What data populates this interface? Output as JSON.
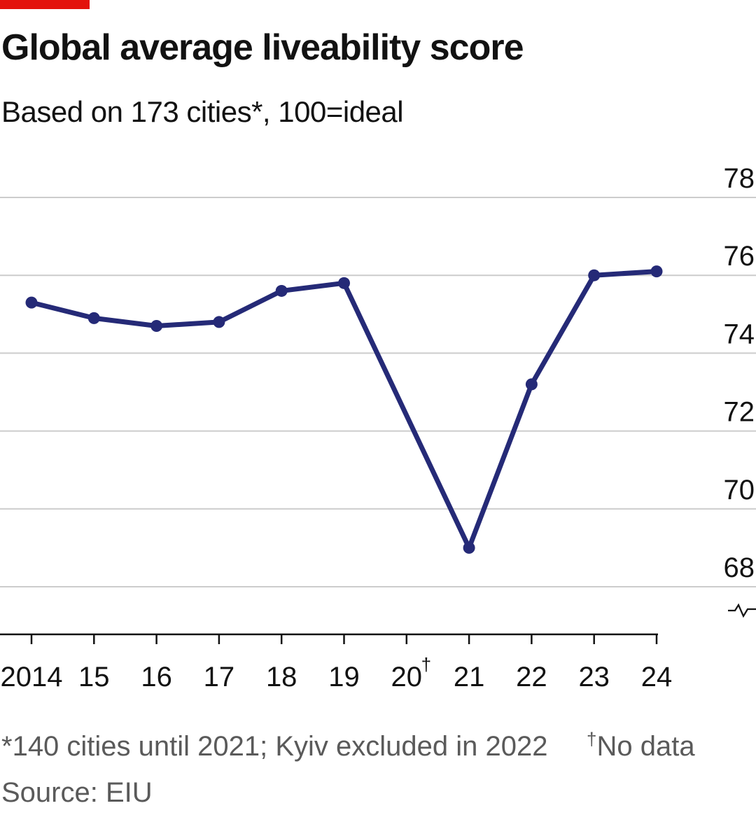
{
  "chart_data": {
    "type": "line",
    "title": "Global average liveability score",
    "subtitle": "Based on 173 cities*, 100=ideal",
    "categories": [
      "2014",
      "15",
      "16",
      "17",
      "18",
      "19",
      "20",
      "21",
      "22",
      "23",
      "24"
    ],
    "category_marks": {
      "20": "†"
    },
    "series": [
      {
        "name": "Global average liveability score",
        "color": "#252a77",
        "values": [
          75.3,
          74.9,
          74.7,
          74.8,
          75.6,
          75.8,
          null,
          69.0,
          73.2,
          76.0,
          76.1
        ]
      }
    ],
    "ylim": [
      66.9,
      78.0
    ],
    "yticks": [
      68,
      70,
      72,
      74,
      76,
      78
    ],
    "y_axis_side": "right",
    "y_axis_break": true,
    "xlabel": "",
    "ylabel": "",
    "grid": true
  },
  "footnotes": {
    "cities": "*140 cities until 2021; Kyiv excluded in 2022",
    "no_data_mark": "†",
    "no_data": "No data",
    "source": "Source: EIU"
  },
  "colors": {
    "accent": "#e3120b",
    "line": "#252a77",
    "grid": "#cccccc",
    "text_muted": "#5a5a5a"
  }
}
